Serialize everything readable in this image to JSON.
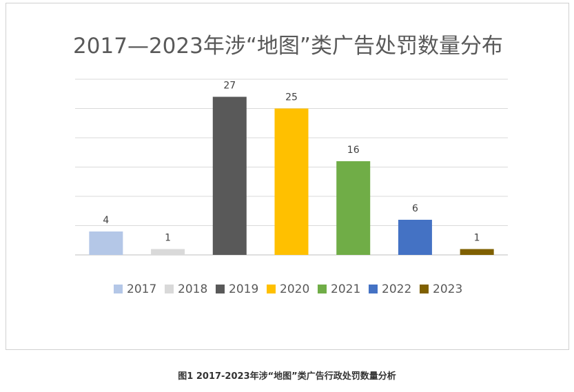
{
  "chart_data": {
    "type": "bar",
    "title": "2017—2023年涉“地图”类广告处罚数量分布",
    "categories": [
      "2017",
      "2018",
      "2019",
      "2020",
      "2021",
      "2022",
      "2023"
    ],
    "values": [
      4,
      1,
      27,
      25,
      16,
      6,
      1
    ],
    "colors": [
      "#b4c7e7",
      "#d9d9d9",
      "#595959",
      "#ffc000",
      "#70ad47",
      "#4472c4",
      "#7f6000"
    ],
    "ylim": [
      0,
      30
    ],
    "yticks_gridlines": [
      0,
      5,
      10,
      15,
      20,
      25,
      30
    ],
    "grid": true,
    "legend_position": "bottom",
    "data_labels": true,
    "xlabel": "",
    "ylabel": ""
  },
  "caption": "图1 2017-2023年涉“地图”类广告行政处罚数量分析"
}
